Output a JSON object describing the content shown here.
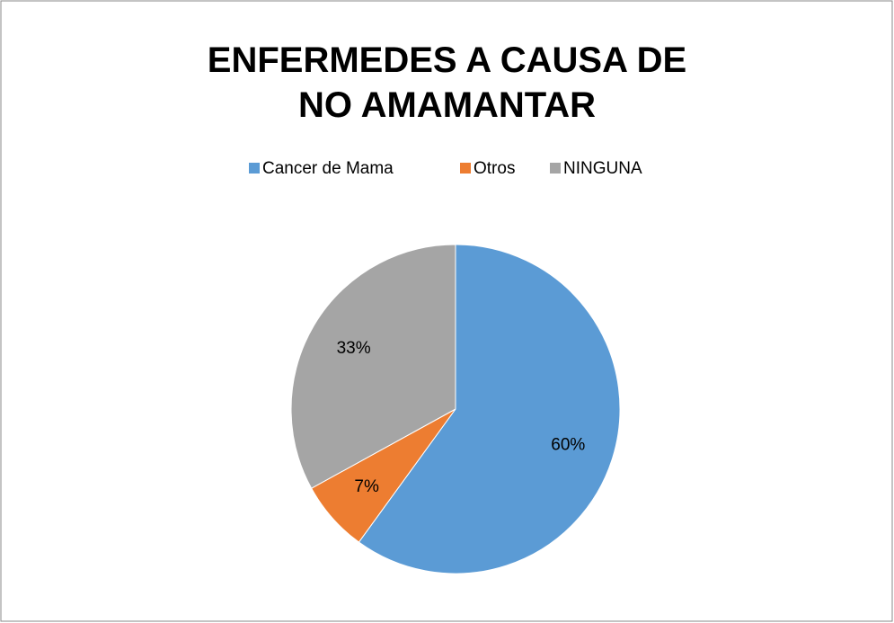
{
  "chart_data": {
    "type": "pie",
    "title": "ENFERMEDES A CAUSA DE NO AMAMANTAR",
    "categories": [
      "Cancer de Mama",
      "Otros",
      "NINGUNA"
    ],
    "values": [
      60,
      7,
      33
    ],
    "value_labels": [
      "60%",
      "7%",
      "33%"
    ],
    "colors": [
      "#5b9bd5",
      "#ed7d31",
      "#a5a5a5"
    ],
    "legend": "top"
  }
}
